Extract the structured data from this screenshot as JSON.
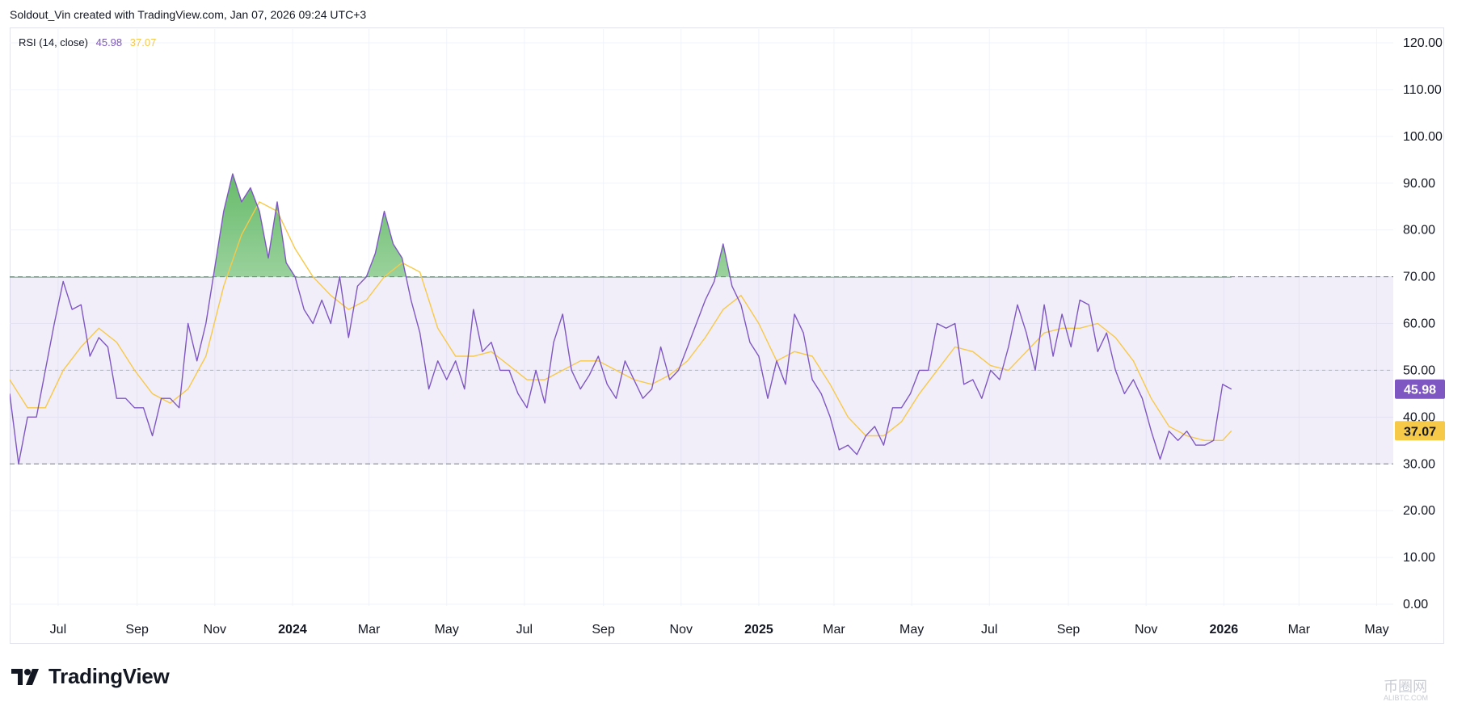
{
  "header": {
    "attribution": "Soldout_Vin created with TradingView.com, Jan 07, 2026 09:24 UTC+3"
  },
  "legend": {
    "indicator": "RSI (14, close)",
    "rsi_value": "45.98",
    "ma_value": "37.07"
  },
  "brand": {
    "name": "TradingView"
  },
  "watermark": {
    "text": "币圈网",
    "sub": "ALIBTC.COM"
  },
  "colors": {
    "rsi": "#7e57c2",
    "ma": "#f7c948",
    "band": "#7e57c2",
    "overbought_fill": "#4caf50",
    "grid": "#f0f3fa"
  },
  "chart_data": {
    "type": "line",
    "title": "RSI (14, close)",
    "ylim": [
      0,
      120
    ],
    "y_ticks": [
      "120.00",
      "110.00",
      "100.00",
      "90.00",
      "80.00",
      "70.00",
      "60.00",
      "50.00",
      "40.00",
      "30.00",
      "20.00",
      "10.00",
      "0.00"
    ],
    "x_ticks": [
      {
        "label": "Jul",
        "date": "2023-07-01",
        "bold": false
      },
      {
        "label": "Sep",
        "date": "2023-09-01",
        "bold": false
      },
      {
        "label": "Nov",
        "date": "2023-11-01",
        "bold": false
      },
      {
        "label": "2024",
        "date": "2024-01-01",
        "bold": true
      },
      {
        "label": "Mar",
        "date": "2024-03-01",
        "bold": false
      },
      {
        "label": "May",
        "date": "2024-05-01",
        "bold": false
      },
      {
        "label": "Jul",
        "date": "2024-07-01",
        "bold": false
      },
      {
        "label": "Sep",
        "date": "2024-09-01",
        "bold": false
      },
      {
        "label": "Nov",
        "date": "2024-11-01",
        "bold": false
      },
      {
        "label": "2025",
        "date": "2025-01-01",
        "bold": true
      },
      {
        "label": "Mar",
        "date": "2025-03-01",
        "bold": false
      },
      {
        "label": "May",
        "date": "2025-05-01",
        "bold": false
      },
      {
        "label": "Jul",
        "date": "2025-07-01",
        "bold": false
      },
      {
        "label": "Sep",
        "date": "2025-09-01",
        "bold": false
      },
      {
        "label": "Nov",
        "date": "2025-11-01",
        "bold": false
      },
      {
        "label": "2026",
        "date": "2026-01-01",
        "bold": true
      },
      {
        "label": "Mar",
        "date": "2026-03-01",
        "bold": false
      },
      {
        "label": "May",
        "date": "2026-05-01",
        "bold": false
      }
    ],
    "x_range": [
      "2023-05-24",
      "2026-05-14"
    ],
    "bands": {
      "upper": 70,
      "middle": 50,
      "lower": 30
    },
    "last_values": {
      "rsi": "45.98",
      "ma": "37.07"
    },
    "series": [
      {
        "name": "RSI",
        "points": [
          [
            "2023-05-24",
            45
          ],
          [
            "2023-05-31",
            30
          ],
          [
            "2023-06-07",
            40
          ],
          [
            "2023-06-14",
            40
          ],
          [
            "2023-06-21",
            50
          ],
          [
            "2023-06-28",
            60
          ],
          [
            "2023-07-05",
            69
          ],
          [
            "2023-07-12",
            63
          ],
          [
            "2023-07-19",
            64
          ],
          [
            "2023-07-26",
            53
          ],
          [
            "2023-08-02",
            57
          ],
          [
            "2023-08-09",
            55
          ],
          [
            "2023-08-16",
            44
          ],
          [
            "2023-08-23",
            44
          ],
          [
            "2023-08-30",
            42
          ],
          [
            "2023-09-06",
            42
          ],
          [
            "2023-09-13",
            36
          ],
          [
            "2023-09-20",
            44
          ],
          [
            "2023-09-27",
            44
          ],
          [
            "2023-10-04",
            42
          ],
          [
            "2023-10-11",
            60
          ],
          [
            "2023-10-18",
            52
          ],
          [
            "2023-10-25",
            60
          ],
          [
            "2023-11-01",
            72
          ],
          [
            "2023-11-08",
            84
          ],
          [
            "2023-11-15",
            92
          ],
          [
            "2023-11-22",
            86
          ],
          [
            "2023-11-29",
            89
          ],
          [
            "2023-12-06",
            84
          ],
          [
            "2023-12-13",
            74
          ],
          [
            "2023-12-20",
            86
          ],
          [
            "2023-12-27",
            73
          ],
          [
            "2024-01-03",
            70
          ],
          [
            "2024-01-10",
            63
          ],
          [
            "2024-01-17",
            60
          ],
          [
            "2024-01-24",
            65
          ],
          [
            "2024-01-31",
            60
          ],
          [
            "2024-02-07",
            70
          ],
          [
            "2024-02-14",
            57
          ],
          [
            "2024-02-21",
            68
          ],
          [
            "2024-02-28",
            70
          ],
          [
            "2024-03-06",
            75
          ],
          [
            "2024-03-13",
            84
          ],
          [
            "2024-03-20",
            77
          ],
          [
            "2024-03-27",
            74
          ],
          [
            "2024-04-03",
            65
          ],
          [
            "2024-04-10",
            58
          ],
          [
            "2024-04-17",
            46
          ],
          [
            "2024-04-24",
            52
          ],
          [
            "2024-05-01",
            48
          ],
          [
            "2024-05-08",
            52
          ],
          [
            "2024-05-15",
            46
          ],
          [
            "2024-05-22",
            63
          ],
          [
            "2024-05-29",
            54
          ],
          [
            "2024-06-05",
            56
          ],
          [
            "2024-06-12",
            50
          ],
          [
            "2024-06-19",
            50
          ],
          [
            "2024-06-26",
            45
          ],
          [
            "2024-07-03",
            42
          ],
          [
            "2024-07-10",
            50
          ],
          [
            "2024-07-17",
            43
          ],
          [
            "2024-07-24",
            56
          ],
          [
            "2024-07-31",
            62
          ],
          [
            "2024-08-07",
            50
          ],
          [
            "2024-08-14",
            46
          ],
          [
            "2024-08-21",
            49
          ],
          [
            "2024-08-28",
            53
          ],
          [
            "2024-09-04",
            47
          ],
          [
            "2024-09-11",
            44
          ],
          [
            "2024-09-18",
            52
          ],
          [
            "2024-09-25",
            48
          ],
          [
            "2024-10-02",
            44
          ],
          [
            "2024-10-09",
            46
          ],
          [
            "2024-10-16",
            55
          ],
          [
            "2024-10-23",
            48
          ],
          [
            "2024-10-30",
            50
          ],
          [
            "2024-11-06",
            55
          ],
          [
            "2024-11-13",
            60
          ],
          [
            "2024-11-20",
            65
          ],
          [
            "2024-11-27",
            69
          ],
          [
            "2024-12-04",
            77
          ],
          [
            "2024-12-11",
            68
          ],
          [
            "2024-12-18",
            64
          ],
          [
            "2024-12-25",
            56
          ],
          [
            "2025-01-01",
            53
          ],
          [
            "2025-01-08",
            44
          ],
          [
            "2025-01-15",
            52
          ],
          [
            "2025-01-22",
            47
          ],
          [
            "2025-01-29",
            62
          ],
          [
            "2025-02-05",
            58
          ],
          [
            "2025-02-12",
            48
          ],
          [
            "2025-02-19",
            45
          ],
          [
            "2025-02-26",
            40
          ],
          [
            "2025-03-05",
            33
          ],
          [
            "2025-03-12",
            34
          ],
          [
            "2025-03-19",
            32
          ],
          [
            "2025-03-26",
            36
          ],
          [
            "2025-04-02",
            38
          ],
          [
            "2025-04-09",
            34
          ],
          [
            "2025-04-16",
            42
          ],
          [
            "2025-04-23",
            42
          ],
          [
            "2025-04-30",
            45
          ],
          [
            "2025-05-07",
            50
          ],
          [
            "2025-05-14",
            50
          ],
          [
            "2025-05-21",
            60
          ],
          [
            "2025-05-28",
            59
          ],
          [
            "2025-06-04",
            60
          ],
          [
            "2025-06-11",
            47
          ],
          [
            "2025-06-18",
            48
          ],
          [
            "2025-06-25",
            44
          ],
          [
            "2025-07-02",
            50
          ],
          [
            "2025-07-09",
            48
          ],
          [
            "2025-07-16",
            55
          ],
          [
            "2025-07-23",
            64
          ],
          [
            "2025-07-30",
            58
          ],
          [
            "2025-08-06",
            50
          ],
          [
            "2025-08-13",
            64
          ],
          [
            "2025-08-20",
            53
          ],
          [
            "2025-08-27",
            62
          ],
          [
            "2025-09-03",
            55
          ],
          [
            "2025-09-10",
            65
          ],
          [
            "2025-09-17",
            64
          ],
          [
            "2025-09-24",
            54
          ],
          [
            "2025-10-01",
            58
          ],
          [
            "2025-10-08",
            50
          ],
          [
            "2025-10-15",
            45
          ],
          [
            "2025-10-22",
            48
          ],
          [
            "2025-10-29",
            44
          ],
          [
            "2025-11-05",
            37
          ],
          [
            "2025-11-12",
            31
          ],
          [
            "2025-11-19",
            37
          ],
          [
            "2025-11-26",
            35
          ],
          [
            "2025-12-03",
            37
          ],
          [
            "2025-12-10",
            34
          ],
          [
            "2025-12-17",
            34
          ],
          [
            "2025-12-24",
            35
          ],
          [
            "2025-12-31",
            47
          ],
          [
            "2026-01-07",
            45.98
          ]
        ]
      },
      {
        "name": "MA",
        "points": [
          [
            "2023-05-24",
            48
          ],
          [
            "2023-06-07",
            42
          ],
          [
            "2023-06-21",
            42
          ],
          [
            "2023-07-05",
            50
          ],
          [
            "2023-07-19",
            55
          ],
          [
            "2023-08-02",
            59
          ],
          [
            "2023-08-16",
            56
          ],
          [
            "2023-08-30",
            50
          ],
          [
            "2023-09-13",
            45
          ],
          [
            "2023-09-27",
            43
          ],
          [
            "2023-10-11",
            46
          ],
          [
            "2023-10-25",
            53
          ],
          [
            "2023-11-08",
            68
          ],
          [
            "2023-11-22",
            79
          ],
          [
            "2023-12-06",
            86
          ],
          [
            "2023-12-20",
            84
          ],
          [
            "2024-01-03",
            76
          ],
          [
            "2024-01-17",
            70
          ],
          [
            "2024-01-31",
            66
          ],
          [
            "2024-02-14",
            63
          ],
          [
            "2024-02-28",
            65
          ],
          [
            "2024-03-13",
            70
          ],
          [
            "2024-03-27",
            73
          ],
          [
            "2024-04-10",
            71
          ],
          [
            "2024-04-24",
            59
          ],
          [
            "2024-05-08",
            53
          ],
          [
            "2024-05-22",
            53
          ],
          [
            "2024-06-05",
            54
          ],
          [
            "2024-06-19",
            51
          ],
          [
            "2024-07-03",
            48
          ],
          [
            "2024-07-17",
            48
          ],
          [
            "2024-07-31",
            50
          ],
          [
            "2024-08-14",
            52
          ],
          [
            "2024-08-28",
            52
          ],
          [
            "2024-09-11",
            50
          ],
          [
            "2024-09-25",
            48
          ],
          [
            "2024-10-09",
            47
          ],
          [
            "2024-10-23",
            49
          ],
          [
            "2024-11-06",
            52
          ],
          [
            "2024-11-20",
            57
          ],
          [
            "2024-12-04",
            63
          ],
          [
            "2024-12-18",
            66
          ],
          [
            "2025-01-01",
            60
          ],
          [
            "2025-01-15",
            52
          ],
          [
            "2025-01-29",
            54
          ],
          [
            "2025-02-12",
            53
          ],
          [
            "2025-02-26",
            47
          ],
          [
            "2025-03-12",
            40
          ],
          [
            "2025-03-26",
            36
          ],
          [
            "2025-04-09",
            36
          ],
          [
            "2025-04-23",
            39
          ],
          [
            "2025-05-07",
            45
          ],
          [
            "2025-05-21",
            50
          ],
          [
            "2025-06-04",
            55
          ],
          [
            "2025-06-18",
            54
          ],
          [
            "2025-07-02",
            51
          ],
          [
            "2025-07-16",
            50
          ],
          [
            "2025-07-30",
            54
          ],
          [
            "2025-08-13",
            58
          ],
          [
            "2025-08-27",
            59
          ],
          [
            "2025-09-10",
            59
          ],
          [
            "2025-09-24",
            60
          ],
          [
            "2025-10-08",
            57
          ],
          [
            "2025-10-22",
            52
          ],
          [
            "2025-11-05",
            44
          ],
          [
            "2025-11-19",
            38
          ],
          [
            "2025-12-03",
            36
          ],
          [
            "2025-12-17",
            35
          ],
          [
            "2025-12-31",
            35
          ],
          [
            "2026-01-07",
            37.07
          ]
        ]
      }
    ]
  }
}
